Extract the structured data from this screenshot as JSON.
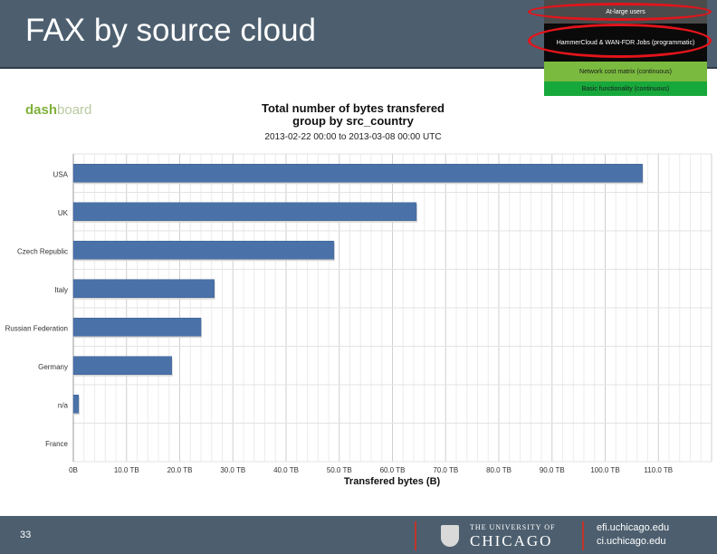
{
  "slide": {
    "title": "FAX by source cloud",
    "page_number": "33"
  },
  "pyramid": {
    "tiers": [
      "At-large users",
      "HammerCloud & WAN-FDR Jobs (programmatic)",
      "Network cost matrix (continuous)",
      "Basic functionality (continuous)"
    ]
  },
  "dashboard": {
    "logo_dash": "dash",
    "logo_board": "board"
  },
  "footer": {
    "uc_small": "THE UNIVERSITY OF",
    "uc_big": "CHICAGO",
    "site1": "efi.uchicago.edu",
    "site2": "ci.uchicago.edu"
  },
  "chart_data": {
    "type": "bar",
    "orientation": "horizontal",
    "title": "Total number of bytes transfered",
    "subtitle": "group by src_country",
    "range": "2013-02-22 00:00 to 2013-03-08 00:00 UTC",
    "xlabel": "Transfered bytes (B)",
    "categories": [
      "USA",
      "UK",
      "Czech Republic",
      "Italy",
      "Russian Federation",
      "Germany",
      "n/a",
      "France"
    ],
    "values": [
      107,
      64.5,
      49,
      26.5,
      24,
      18.5,
      1,
      0
    ],
    "xlim": [
      0,
      120
    ],
    "xticks": [
      0,
      10,
      20,
      30,
      40,
      50,
      60,
      70,
      80,
      90,
      100,
      110
    ],
    "xtick_labels": [
      "0B",
      "10.0 TB",
      "20.0 TB",
      "30.0 TB",
      "40.0 TB",
      "50.0 TB",
      "60.0 TB",
      "70.0 TB",
      "80.0 TB",
      "90.0 TB",
      "100.0 TB",
      "110.0 TB"
    ],
    "grid": true,
    "bar_color": "#4a72a8"
  }
}
